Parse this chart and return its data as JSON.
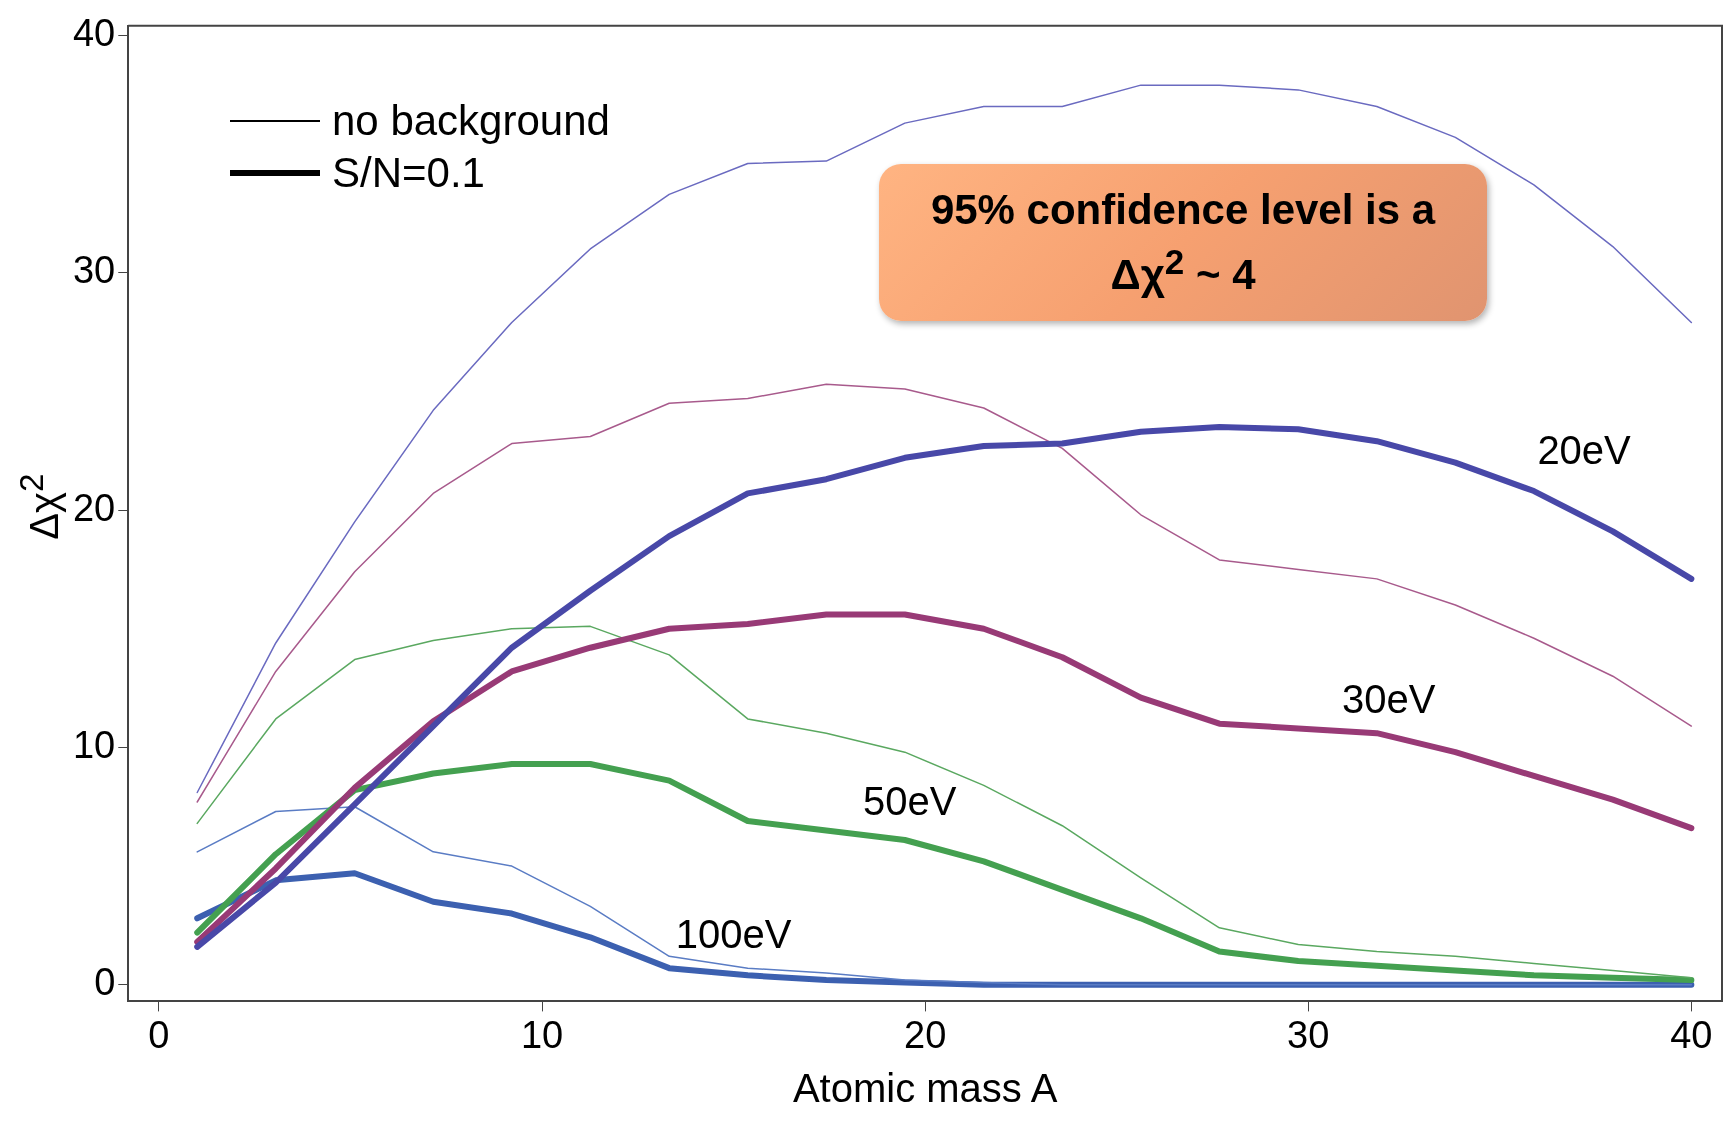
{
  "chart_data": {
    "type": "line",
    "xlabel": "Atomic mass A",
    "ylabel": "Δχ$^{2}$",
    "x": [
      1,
      3.05,
      5.11,
      7.16,
      9.21,
      11.26,
      13.32,
      15.37,
      17.42,
      19.47,
      21.53,
      23.58,
      25.63,
      27.68,
      29.74,
      31.79,
      33.84,
      35.89,
      37.95,
      40
    ],
    "series": [
      {
        "color": "#6a6ac0",
        "values": [
          8.1,
          14.4,
          19.5,
          24.2,
          27.9,
          31.0,
          33.3,
          34.6,
          34.7,
          36.3,
          37.0,
          37.0,
          37.9,
          37.9,
          37.7,
          37.0,
          35.7,
          33.7,
          31.1,
          27.9
        ]
      },
      {
        "name": "20eV",
        "color": "#4848a8",
        "values": [
          1.6,
          4.3,
          7.6,
          10.9,
          14.2,
          16.6,
          18.9,
          20.7,
          21.3,
          22.2,
          22.7,
          22.8,
          23.3,
          23.5,
          23.4,
          22.9,
          22.0,
          20.8,
          19.1,
          17.1
        ]
      },
      {
        "color": "#a85a8c",
        "values": [
          7.7,
          13.2,
          17.4,
          20.7,
          22.8,
          23.1,
          24.5,
          24.7,
          25.3,
          25.1,
          24.3,
          22.6,
          19.8,
          17.9,
          17.5,
          17.1,
          16.0,
          14.6,
          13.0,
          10.9
        ]
      },
      {
        "name": "30eV",
        "color": "#983a76",
        "values": [
          1.8,
          4.9,
          8.3,
          11.1,
          13.2,
          14.2,
          15.0,
          15.2,
          15.6,
          15.6,
          15.0,
          13.8,
          12.1,
          11.0,
          10.8,
          10.6,
          9.8,
          8.8,
          7.8,
          6.6
        ]
      },
      {
        "color": "#5aa860",
        "values": [
          6.8,
          11.2,
          13.7,
          14.5,
          15.0,
          15.1,
          13.9,
          11.2,
          10.6,
          9.8,
          8.4,
          6.7,
          4.5,
          2.4,
          1.7,
          1.4,
          1.2,
          0.9,
          0.6,
          0.3
        ]
      },
      {
        "name": "50eV",
        "color": "#44a050",
        "values": [
          2.2,
          5.5,
          8.2,
          8.9,
          9.3,
          9.3,
          8.6,
          6.9,
          6.5,
          6.1,
          5.2,
          4.0,
          2.8,
          1.4,
          1.0,
          0.8,
          0.6,
          0.4,
          0.3,
          0.2
        ]
      },
      {
        "color": "#5a7cc4",
        "values": [
          5.6,
          7.3,
          7.5,
          5.6,
          5.0,
          3.3,
          1.2,
          0.7,
          0.5,
          0.2,
          0.1,
          0,
          0,
          0,
          0,
          0,
          0,
          0,
          0,
          0
        ]
      },
      {
        "name": "100eV",
        "color": "#3c60b0",
        "values": [
          2.8,
          4.4,
          4.7,
          3.5,
          3.0,
          2.0,
          0.7,
          0.4,
          0.2,
          0.1,
          0,
          0,
          0,
          0,
          0,
          0,
          0,
          0,
          0,
          0
        ]
      }
    ],
    "annotations": [
      "no background",
      "S/N=0.1",
      "95% confidence level is a Δχ$^{2}$ ~ 4"
    ],
    "xlim": [
      -0.8,
      40.8
    ],
    "ylim": [
      -0.7,
      40.4
    ],
    "xticks": [
      0,
      10,
      20,
      30,
      40
    ],
    "yticks": [
      0,
      10,
      20,
      30,
      40
    ],
    "grid": false,
    "marker": "none",
    "line_style": "solid"
  }
}
